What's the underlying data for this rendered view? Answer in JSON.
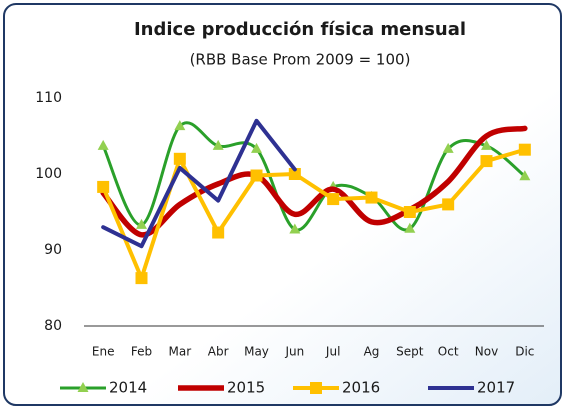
{
  "chart_data": {
    "type": "line",
    "title": "Indice producción física mensual",
    "subtitle": "(RBB Base Prom 2009 = 100)",
    "categories": [
      "Ene",
      "Feb",
      "Mar",
      "Abr",
      "May",
      "Jun",
      "Jul",
      "Ag",
      "Sept",
      "Oct",
      "Nov",
      "Dic"
    ],
    "ylim": [
      80,
      110
    ],
    "yticks": [
      80,
      90,
      100,
      110
    ],
    "grid": false,
    "legend": "bottom",
    "series": [
      {
        "name": "2014",
        "color": "#2aa02a",
        "marker": "triangle",
        "marker_color": "#92d050",
        "smooth": true,
        "values": [
          103.7,
          93.3,
          106.3,
          103.7,
          103.3,
          92.7,
          98.3,
          97,
          92.8,
          103.3,
          103.7,
          99.7
        ]
      },
      {
        "name": "2015",
        "color": "#c00000",
        "marker": null,
        "smooth": true,
        "values": [
          97.5,
          92,
          96,
          98.7,
          99.8,
          94.7,
          98,
          93.7,
          95.3,
          99,
          105,
          106
        ]
      },
      {
        "name": "2016",
        "color": "#ffc000",
        "marker": "square",
        "marker_color": "#ffc000",
        "smooth": false,
        "values": [
          98.3,
          86.3,
          102,
          92.3,
          99.8,
          100,
          96.7,
          96.9,
          95,
          96,
          101.7,
          103.2
        ]
      },
      {
        "name": "2017",
        "color": "#2e3192",
        "marker": null,
        "smooth": false,
        "values": [
          93,
          90.5,
          100.8,
          96.5,
          107,
          100.6,
          null,
          null,
          null,
          null,
          null,
          null
        ]
      }
    ]
  }
}
